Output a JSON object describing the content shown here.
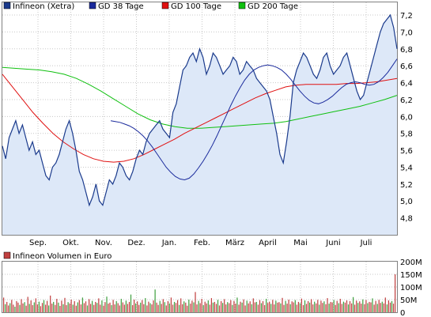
{
  "chart_data": [
    {
      "type": "line",
      "title": "",
      "xlabel": "",
      "ylabel": "",
      "ylim": [
        4.6,
        7.35
      ],
      "grid": true,
      "legend": "top-left",
      "x_tick_labels": [
        "Sep.",
        "Okt.",
        "Nov.",
        "Dez.",
        "Jan.",
        "Feb.",
        "März",
        "April",
        "Mai",
        "Juni",
        "Juli"
      ],
      "y_ticks": [
        4.8,
        5.0,
        5.2,
        5.4,
        5.6,
        5.8,
        6.0,
        6.2,
        6.4,
        6.6,
        6.8,
        7.0,
        7.2
      ],
      "y_tick_labels": [
        "4,8",
        "5,0",
        "5,2",
        "5,4",
        "5,6",
        "5,8",
        "6,0",
        "6,2",
        "6,4",
        "6,6",
        "6,8",
        "7,0",
        "7,2"
      ],
      "series": [
        {
          "name": "Infineon (Xetra)",
          "color": "#1a3a8c",
          "fill": "#dde8f8",
          "values": [
            5.65,
            5.5,
            5.75,
            5.85,
            5.95,
            5.8,
            5.9,
            5.75,
            5.6,
            5.7,
            5.55,
            5.6,
            5.45,
            5.3,
            5.25,
            5.4,
            5.45,
            5.55,
            5.7,
            5.85,
            5.95,
            5.8,
            5.6,
            5.35,
            5.25,
            5.1,
            4.95,
            5.05,
            5.2,
            5.0,
            4.95,
            5.1,
            5.25,
            5.2,
            5.3,
            5.45,
            5.4,
            5.3,
            5.25,
            5.35,
            5.5,
            5.6,
            5.55,
            5.7,
            5.8,
            5.85,
            5.9,
            5.95,
            5.85,
            5.8,
            5.75,
            6.05,
            6.15,
            6.35,
            6.55,
            6.6,
            6.7,
            6.75,
            6.65,
            6.8,
            6.7,
            6.5,
            6.6,
            6.75,
            6.7,
            6.6,
            6.5,
            6.55,
            6.6,
            6.7,
            6.65,
            6.5,
            6.55,
            6.65,
            6.6,
            6.55,
            6.45,
            6.4,
            6.35,
            6.3,
            6.2,
            6.0,
            5.8,
            5.55,
            5.45,
            5.7,
            6.0,
            6.4,
            6.55,
            6.65,
            6.75,
            6.7,
            6.6,
            6.5,
            6.45,
            6.55,
            6.7,
            6.75,
            6.6,
            6.5,
            6.55,
            6.6,
            6.7,
            6.75,
            6.6,
            6.45,
            6.3,
            6.2,
            6.25,
            6.4,
            6.55,
            6.7,
            6.85,
            7.0,
            7.1,
            7.15,
            7.2,
            7.05,
            6.8
          ],
          "labels_from_legend": true
        },
        {
          "name": "GD 38 Tage",
          "color": "#1a2a9c",
          "values": [
            5.95,
            5.94,
            5.93,
            5.91,
            5.89,
            5.86,
            5.82,
            5.77,
            5.71,
            5.64,
            5.56,
            5.48,
            5.4,
            5.34,
            5.29,
            5.26,
            5.25,
            5.27,
            5.32,
            5.39,
            5.47,
            5.56,
            5.66,
            5.77,
            5.89,
            6.01,
            6.13,
            6.24,
            6.34,
            6.43,
            6.5,
            6.55,
            6.58,
            6.6,
            6.61,
            6.6,
            6.58,
            6.55,
            6.5,
            6.44,
            6.37,
            6.3,
            6.24,
            6.19,
            6.16,
            6.15,
            6.17,
            6.2,
            6.24,
            6.29,
            6.34,
            6.38,
            6.4,
            6.41,
            6.4,
            6.38,
            6.37,
            6.38,
            6.41,
            6.46,
            6.52,
            6.6,
            6.68
          ]
        },
        {
          "name": "GD 100 Tage",
          "color": "#e01010",
          "values": [
            6.5,
            6.35,
            6.2,
            6.05,
            5.92,
            5.8,
            5.7,
            5.62,
            5.55,
            5.5,
            5.47,
            5.46,
            5.47,
            5.5,
            5.55,
            5.61,
            5.67,
            5.73,
            5.8,
            5.86,
            5.92,
            5.98,
            6.04,
            6.1,
            6.16,
            6.22,
            6.27,
            6.31,
            6.35,
            6.37,
            6.38,
            6.38,
            6.38,
            6.38,
            6.39,
            6.39,
            6.4,
            6.41,
            6.43,
            6.45
          ]
        },
        {
          "name": "GD 200 Tage",
          "color": "#10c010",
          "values": [
            6.58,
            6.57,
            6.56,
            6.55,
            6.53,
            6.5,
            6.45,
            6.38,
            6.3,
            6.21,
            6.12,
            6.03,
            5.96,
            5.91,
            5.88,
            5.86,
            5.86,
            5.87,
            5.88,
            5.89,
            5.9,
            5.91,
            5.92,
            5.94,
            5.97,
            6.0,
            6.03,
            6.06,
            6.09,
            6.12,
            6.16,
            6.2,
            6.25
          ]
        }
      ]
    },
    {
      "type": "bar",
      "title": "",
      "xlabel": "",
      "ylabel": "",
      "ylim": [
        0,
        200
      ],
      "legend": "top-left",
      "y_ticks": [
        0,
        50,
        100,
        150,
        200
      ],
      "y_tick_labels": [
        "0",
        "50M",
        "100M",
        "150M",
        "200M"
      ],
      "series": [
        {
          "name": "Infineon Volumen in Euro",
          "color": "#c04040",
          "alt_color": "#40a040",
          "values": [
            58,
            32,
            41,
            27,
            36,
            49,
            30,
            22,
            44,
            38,
            29,
            52,
            35,
            40,
            26,
            61,
            33,
            47,
            28,
            39,
            55,
            31,
            42,
            24,
            37,
            48,
            30,
            45,
            27,
            66,
            34,
            41,
            29,
            53,
            38,
            25,
            46,
            32,
            57,
            28,
            40,
            35,
            50,
            30,
            44,
            26,
            39,
            48,
            31,
            58,
            36,
            43,
            27,
            52,
            33,
            45,
            29,
            41,
            37,
            55,
            30,
            47,
            26,
            40,
            62,
            34,
            38,
            28,
            49,
            31,
            44,
            36,
            27,
            53,
            39,
            30,
            46,
            33,
            41,
            70,
            28,
            50,
            35,
            43,
            29,
            38,
            48,
            32,
            56,
            27,
            42,
            36,
            31,
            47,
            90,
            38,
            29,
            45,
            33,
            52,
            40,
            27,
            44,
            35,
            58,
            30,
            41,
            37,
            48,
            29,
            55,
            32,
            43,
            38,
            26,
            50,
            34,
            46,
            39,
            80,
            31,
            45,
            36,
            53,
            28,
            42,
            35,
            47,
            30,
            56,
            38,
            41,
            33,
            49,
            27,
            44,
            37,
            52,
            31,
            40,
            36,
            48,
            29,
            45,
            34,
            58,
            30,
            42,
            38,
            51,
            27,
            46,
            35,
            43,
            32,
            55,
            39,
            41,
            30,
            48,
            36,
            44,
            28,
            53,
            37,
            42,
            33,
            49,
            31,
            46,
            38,
            40,
            35,
            57,
            29,
            45,
            34,
            50,
            32,
            43,
            39,
            48,
            30,
            41,
            36,
            54,
            28,
            47,
            33,
            44,
            38,
            52,
            31,
            42,
            35,
            49,
            30,
            46,
            37,
            43,
            32,
            56,
            34,
            41,
            39,
            48,
            29,
            45,
            36,
            53,
            33,
            42,
            38,
            47,
            31,
            44,
            35,
            60,
            30,
            46,
            37,
            43,
            34,
            51,
            32,
            48,
            36,
            41,
            39,
            55,
            30,
            45,
            33,
            49,
            37,
            42,
            35,
            58,
            31,
            47,
            38,
            44,
            34,
            150
          ]
        }
      ]
    }
  ]
}
